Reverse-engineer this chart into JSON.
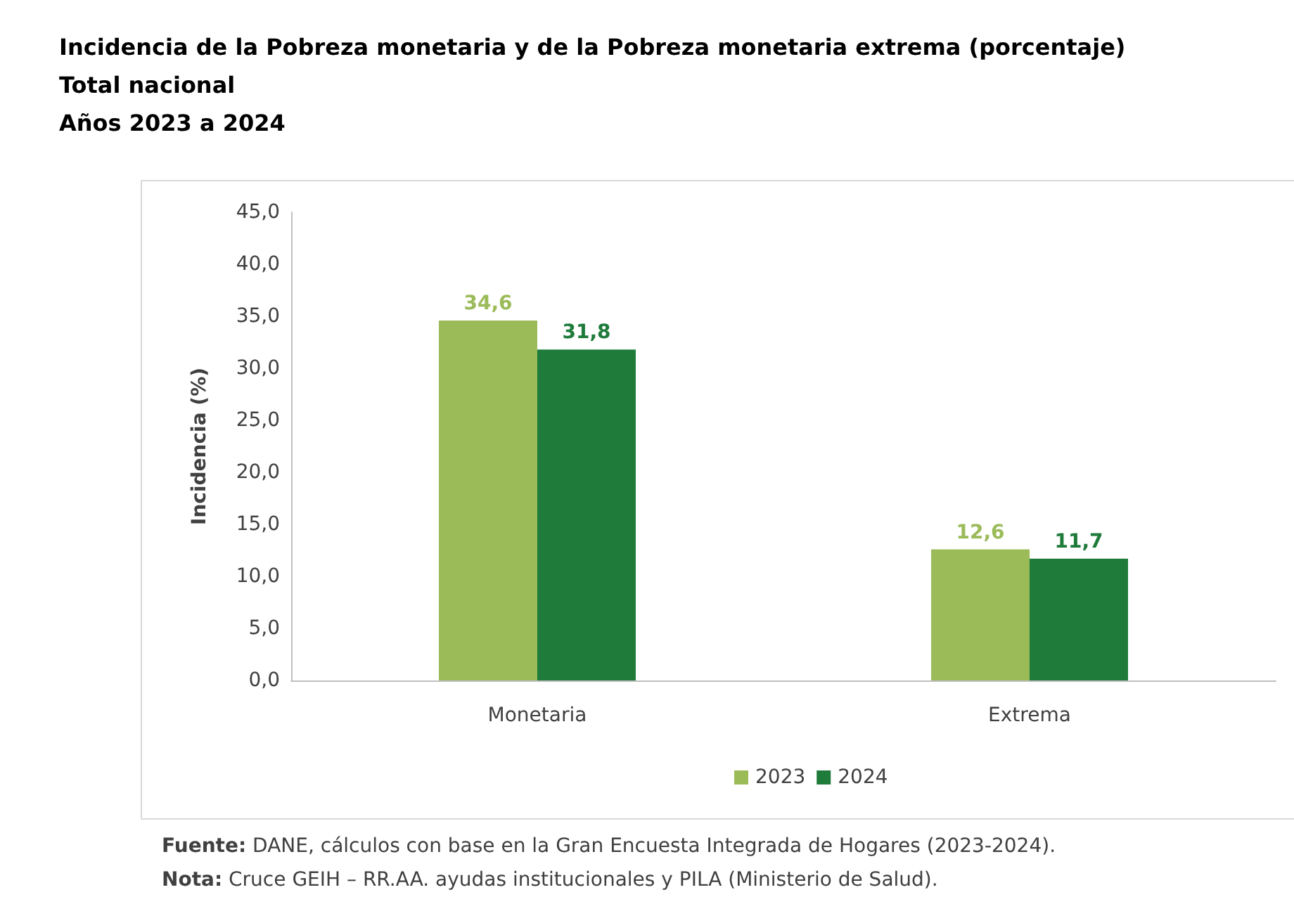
{
  "chart_data": {
    "type": "bar",
    "title": "Incidencia de la Pobreza monetaria y de la Pobreza monetaria extrema (porcentaje)",
    "subtitle": "Total nacional\nAños 2023 a 2024",
    "ylabel": "Incidencia (%)",
    "categories": [
      "Monetaria",
      "Extrema"
    ],
    "series": [
      {
        "name": "2023",
        "color": "#9bbb59",
        "values": [
          34.6,
          12.6
        ],
        "value_labels": [
          "34,6",
          "12,6"
        ]
      },
      {
        "name": "2024",
        "color": "#1e7b3a",
        "values": [
          31.8,
          11.7
        ],
        "value_labels": [
          "31,8",
          "11,7"
        ]
      }
    ],
    "ylim": [
      0,
      45
    ],
    "yticks": [
      {
        "value": 0,
        "label": "0,0"
      },
      {
        "value": 5,
        "label": "5,0"
      },
      {
        "value": 10,
        "label": "10,0"
      },
      {
        "value": 15,
        "label": "15,0"
      },
      {
        "value": 20,
        "label": "20,0"
      },
      {
        "value": 25,
        "label": "25,0"
      },
      {
        "value": 30,
        "label": "30,0"
      },
      {
        "value": 35,
        "label": "35,0"
      },
      {
        "value": 40,
        "label": "40,0"
      },
      {
        "value": 45,
        "label": "45,0"
      }
    ],
    "grid": false,
    "legend": "bottom",
    "annotations": [
      "Fuente: DANE, cálculos con base en la Gran Encuesta Integrada de Hogares (2023-2024).",
      "Nota: Cruce GEIH – RR.AA. ayudas institucionales y PILA (Ministerio de Salud)."
    ]
  }
}
